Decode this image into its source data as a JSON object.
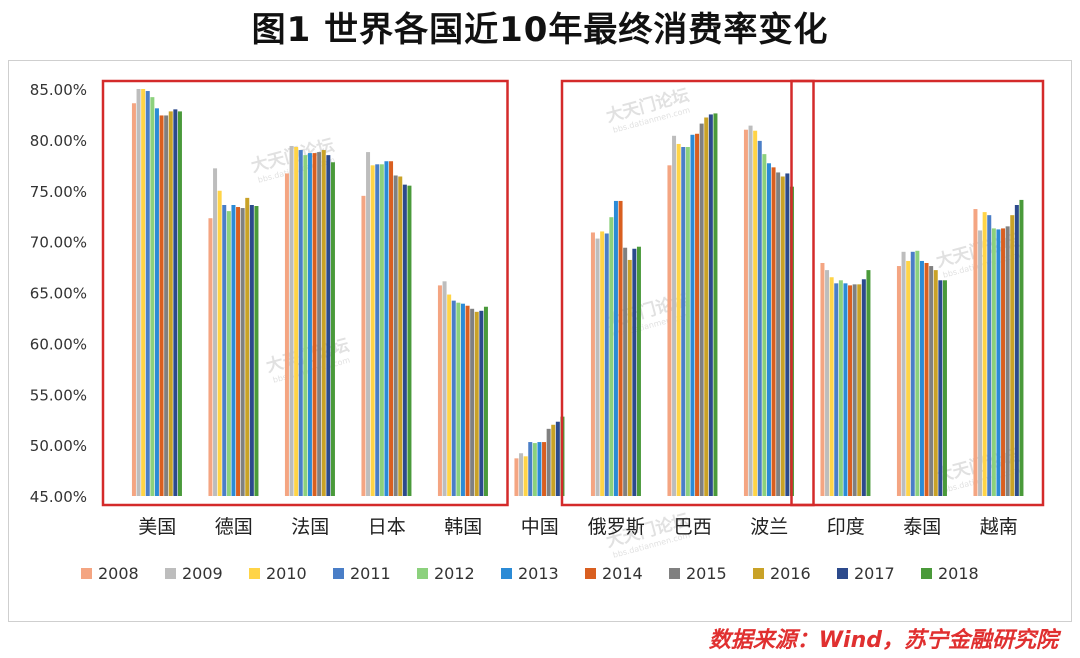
{
  "title": "图1 世界各国近10年最终消费率变化",
  "source": "数据来源：Wind，苏宁金融研究院",
  "watermark": {
    "main": "大天门论坛",
    "sub": "bbs.datianmen.com"
  },
  "chart_data": {
    "type": "bar",
    "title": "图1 世界各国近10年最终消费率变化",
    "categories": [
      "美国",
      "德国",
      "法国",
      "日本",
      "韩国",
      "中国",
      "俄罗斯",
      "巴西",
      "波兰",
      "印度",
      "泰国",
      "越南"
    ],
    "ylim": [
      45,
      85
    ],
    "yticks": [
      "45.00%",
      "50.00%",
      "55.00%",
      "60.00%",
      "65.00%",
      "70.00%",
      "75.00%",
      "80.00%",
      "85.00%"
    ],
    "legend_position": "bottom",
    "colors": [
      "#f4a582",
      "#bdbdbd",
      "#ffd447",
      "#4a7ec7",
      "#8cd17d",
      "#2b8bd6",
      "#d95f20",
      "#808080",
      "#c9a227",
      "#2c4a8c",
      "#4a9a3a"
    ],
    "series": [
      {
        "name": "2008",
        "values": [
          83.6,
          72.3,
          76.7,
          74.5,
          65.7,
          48.7,
          70.9,
          77.5,
          81.0,
          67.9,
          67.6,
          73.2
        ]
      },
      {
        "name": "2009",
        "values": [
          85.0,
          77.2,
          79.4,
          78.8,
          66.1,
          49.2,
          70.3,
          80.4,
          81.4,
          67.2,
          69.0,
          71.1
        ]
      },
      {
        "name": "2010",
        "values": [
          85.0,
          75.0,
          79.3,
          77.5,
          64.8,
          48.9,
          71.0,
          79.6,
          80.9,
          66.5,
          68.1,
          72.9
        ]
      },
      {
        "name": "2011",
        "values": [
          84.8,
          73.6,
          79.0,
          77.6,
          64.2,
          50.3,
          70.8,
          79.3,
          79.9,
          65.9,
          69.0,
          72.6
        ]
      },
      {
        "name": "2012",
        "values": [
          84.2,
          73.0,
          78.5,
          77.6,
          64.0,
          50.2,
          72.4,
          79.3,
          78.6,
          66.2,
          69.1,
          71.3
        ]
      },
      {
        "name": "2013",
        "values": [
          83.1,
          73.6,
          78.7,
          77.9,
          63.9,
          50.3,
          74.0,
          80.5,
          77.7,
          65.9,
          68.1,
          71.2
        ]
      },
      {
        "name": "2014",
        "values": [
          82.4,
          73.4,
          78.7,
          77.9,
          63.7,
          50.3,
          74.0,
          80.6,
          77.3,
          65.7,
          67.9,
          71.3
        ]
      },
      {
        "name": "2015",
        "values": [
          82.4,
          73.3,
          78.8,
          76.5,
          63.4,
          51.6,
          69.4,
          81.6,
          76.8,
          65.8,
          67.6,
          71.5
        ]
      },
      {
        "name": "2016",
        "values": [
          82.8,
          74.3,
          79.0,
          76.4,
          63.1,
          52.0,
          68.2,
          82.2,
          76.4,
          65.8,
          67.2,
          72.6
        ]
      },
      {
        "name": "2017",
        "values": [
          83.0,
          73.6,
          78.5,
          75.6,
          63.2,
          52.3,
          69.3,
          82.5,
          76.7,
          66.3,
          66.2,
          73.6
        ]
      },
      {
        "name": "2018",
        "values": [
          82.8,
          73.5,
          77.8,
          75.5,
          63.6,
          52.8,
          69.5,
          82.6,
          75.4,
          67.2,
          66.2,
          74.1
        ]
      }
    ],
    "highlight_groups": [
      {
        "name": "developed",
        "categories": [
          "美国",
          "德国",
          "法国",
          "日本",
          "韩国"
        ]
      },
      {
        "name": "emerging-europe-latam",
        "categories": [
          "俄罗斯",
          "巴西",
          "波兰"
        ]
      },
      {
        "name": "emerging-asia",
        "categories": [
          "印度",
          "泰国",
          "越南"
        ]
      }
    ]
  }
}
